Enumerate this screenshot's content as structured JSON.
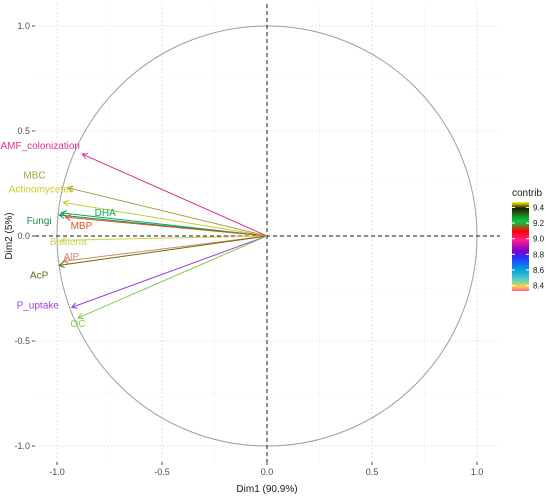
{
  "chart_data": {
    "type": "scatter",
    "subtype": "pca-variable-correlation-circle",
    "xlabel": "Dim1 (90.9%)",
    "ylabel": "Dim2 (5%)",
    "xlim": [
      -1.05,
      1.05
    ],
    "ylim": [
      -1.05,
      1.05
    ],
    "x_ticks": [
      "-1.0",
      "-0.5",
      "0.0",
      "0.5",
      "1.0"
    ],
    "y_ticks": [
      "-1.0",
      "-0.5",
      "0.0",
      "0.5",
      "1.0"
    ],
    "grid": true,
    "unit_circle": true,
    "variables": [
      {
        "name": "AMF_colonization",
        "x": -0.88,
        "y": 0.39,
        "color": "#e0308a"
      },
      {
        "name": "MBC",
        "x": -0.95,
        "y": 0.23,
        "color": "#a8a040"
      },
      {
        "name": "Actinomycetes",
        "x": -0.97,
        "y": 0.16,
        "color": "#c9cc2a"
      },
      {
        "name": "Fungi",
        "x": -0.99,
        "y": 0.1,
        "color": "#1e8a4a"
      },
      {
        "name": "DHA",
        "x": -0.98,
        "y": 0.11,
        "color": "#00b050"
      },
      {
        "name": "MBP",
        "x": -0.96,
        "y": 0.09,
        "color": "#e05030"
      },
      {
        "name": "Bacteria",
        "x": -0.98,
        "y": -0.02,
        "color": "#cdd24a"
      },
      {
        "name": "AlP",
        "x": -0.97,
        "y": -0.12,
        "color": "#d08870"
      },
      {
        "name": "AcP",
        "x": -0.99,
        "y": -0.14,
        "color": "#6e6a10"
      },
      {
        "name": "P_uptake",
        "x": -0.93,
        "y": -0.34,
        "color": "#9b3fe6"
      },
      {
        "name": "OC",
        "x": -0.9,
        "y": -0.39,
        "color": "#7fcf4a"
      }
    ],
    "legend": {
      "title": "contrib",
      "position": "right",
      "ticks": [
        "9.4",
        "9.2",
        "9.0",
        "8.8",
        "8.6",
        "8.4"
      ]
    }
  }
}
